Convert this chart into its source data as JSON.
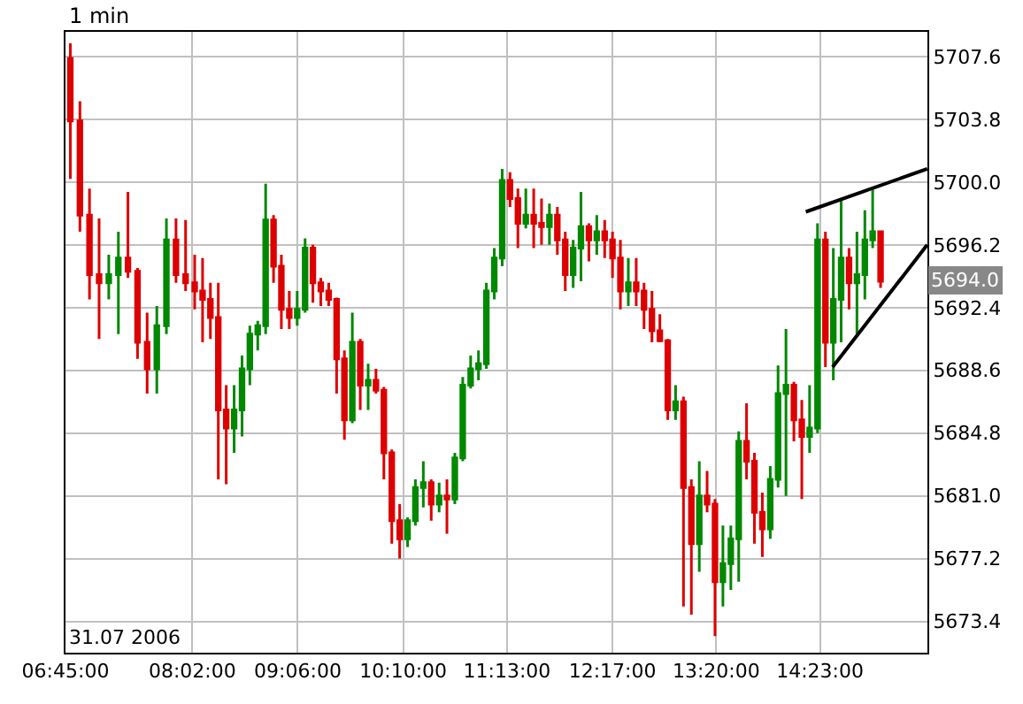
{
  "chart_data": {
    "type": "candlestick",
    "subtitle": "1 min",
    "annotations": [
      "31.07 2006",
      {
        "text": "5694.0",
        "y": 5694.0
      }
    ],
    "x": [
      6.799,
      6.896,
      6.993,
      7.09,
      7.188,
      7.285,
      7.382,
      7.479,
      7.576,
      7.674,
      7.771,
      7.868,
      7.965,
      8.057,
      8.137,
      8.216,
      8.296,
      8.376,
      8.456,
      8.536,
      8.615,
      8.695,
      8.775,
      8.855,
      8.934,
      9.014,
      9.094,
      9.174,
      9.253,
      9.333,
      9.413,
      9.493,
      9.572,
      9.652,
      9.732,
      9.812,
      9.891,
      9.971,
      10.051,
      10.131,
      10.211,
      10.29,
      10.37,
      10.45,
      10.53,
      10.609,
      10.689,
      10.769,
      10.849,
      10.928,
      11.008,
      11.088,
      11.168,
      11.247,
      11.327,
      11.407,
      11.487,
      11.566,
      11.646,
      11.726,
      11.806,
      11.886,
      11.965,
      12.045,
      12.125,
      12.205,
      12.284,
      12.364,
      12.444,
      12.524,
      12.603,
      12.683,
      12.763,
      12.843,
      12.922,
      13.002,
      13.082,
      13.162,
      13.241,
      13.321,
      13.401,
      13.481,
      13.561,
      13.64,
      13.72,
      13.8,
      13.88,
      13.959,
      14.039,
      14.119,
      14.199,
      14.278,
      14.358,
      14.438,
      14.518,
      14.597,
      14.677,
      14.757,
      14.837,
      14.916,
      14.996
    ],
    "ohlc": [
      [
        5707.5,
        5708.4,
        5700.2,
        5703.7
      ],
      [
        5703.7,
        5704.9,
        5697.0,
        5698.0
      ],
      [
        5698.0,
        5699.6,
        5692.9,
        5694.4
      ],
      [
        5694.4,
        5697.8,
        5690.5,
        5693.9
      ],
      [
        5693.9,
        5695.6,
        5692.9,
        5694.4
      ],
      [
        5694.4,
        5697.0,
        5690.8,
        5695.4
      ],
      [
        5695.4,
        5699.4,
        5694.2,
        5694.6
      ],
      [
        5694.6,
        5694.8,
        5689.3,
        5690.3
      ],
      [
        5690.3,
        5692.1,
        5687.2,
        5688.7
      ],
      [
        5688.7,
        5692.5,
        5687.2,
        5691.3
      ],
      [
        5691.3,
        5697.8,
        5690.8,
        5696.5
      ],
      [
        5696.5,
        5697.8,
        5693.9,
        5694.4
      ],
      [
        5694.4,
        5697.7,
        5693.4,
        5693.9
      ],
      [
        5693.9,
        5695.6,
        5692.3,
        5693.4
      ],
      [
        5693.4,
        5695.4,
        5690.3,
        5692.9
      ],
      [
        5692.9,
        5693.9,
        5690.5,
        5691.8
      ],
      [
        5691.8,
        5693.9,
        5682.0,
        5686.2
      ],
      [
        5686.2,
        5687.7,
        5681.7,
        5685.1
      ],
      [
        5685.1,
        5687.7,
        5683.6,
        5686.2
      ],
      [
        5686.2,
        5689.5,
        5684.6,
        5688.7
      ],
      [
        5688.7,
        5691.3,
        5687.7,
        5690.8
      ],
      [
        5690.8,
        5691.6,
        5689.8,
        5691.3
      ],
      [
        5691.3,
        5699.9,
        5690.8,
        5697.7
      ],
      [
        5697.7,
        5698.0,
        5693.9,
        5694.9
      ],
      [
        5694.9,
        5695.6,
        5691.1,
        5692.3
      ],
      [
        5692.3,
        5693.4,
        5691.1,
        5691.8
      ],
      [
        5691.8,
        5693.4,
        5691.3,
        5692.3
      ],
      [
        5692.3,
        5696.6,
        5692.1,
        5696.0
      ],
      [
        5696.0,
        5696.2,
        5692.7,
        5693.9
      ],
      [
        5693.9,
        5694.2,
        5692.5,
        5693.4
      ],
      [
        5693.4,
        5693.9,
        5692.5,
        5692.9
      ],
      [
        5692.9,
        5693.0,
        5687.2,
        5689.3
      ],
      [
        5689.3,
        5689.8,
        5684.4,
        5685.6
      ],
      [
        5685.6,
        5692.1,
        5685.4,
        5690.3
      ],
      [
        5690.3,
        5690.5,
        5686.2,
        5687.7
      ],
      [
        5687.7,
        5689.0,
        5686.2,
        5688.0
      ],
      [
        5688.0,
        5688.7,
        5687.2,
        5687.4
      ],
      [
        5687.4,
        5687.6,
        5682.0,
        5683.6
      ],
      [
        5683.6,
        5683.8,
        5678.1,
        5679.5
      ],
      [
        5679.5,
        5680.5,
        5677.2,
        5678.4
      ],
      [
        5678.4,
        5679.7,
        5677.9,
        5679.5
      ],
      [
        5679.5,
        5682.0,
        5679.2,
        5681.5
      ],
      [
        5681.5,
        5683.1,
        5680.3,
        5681.8
      ],
      [
        5681.8,
        5682.0,
        5679.5,
        5680.5
      ],
      [
        5680.5,
        5681.8,
        5680.0,
        5681.0
      ],
      [
        5681.0,
        5682.0,
        5678.7,
        5680.8
      ],
      [
        5680.8,
        5683.6,
        5680.5,
        5683.3
      ],
      [
        5683.3,
        5688.2,
        5683.1,
        5687.7
      ],
      [
        5687.7,
        5689.5,
        5687.5,
        5688.7
      ],
      [
        5688.7,
        5689.8,
        5688.0,
        5689.0
      ],
      [
        5689.0,
        5693.9,
        5688.7,
        5693.4
      ],
      [
        5693.4,
        5696.0,
        5692.9,
        5695.4
      ],
      [
        5695.4,
        5700.8,
        5694.9,
        5700.1
      ],
      [
        5700.1,
        5700.6,
        5698.5,
        5699.0
      ],
      [
        5699.0,
        5699.6,
        5696.0,
        5697.5
      ],
      [
        5697.5,
        5699.6,
        5697.2,
        5698.0
      ],
      [
        5698.0,
        5699.6,
        5696.0,
        5697.5
      ],
      [
        5697.5,
        5699.0,
        5696.2,
        5697.3
      ],
      [
        5697.3,
        5698.7,
        5696.2,
        5698.0
      ],
      [
        5698.0,
        5698.5,
        5695.6,
        5696.5
      ],
      [
        5696.5,
        5697.0,
        5693.4,
        5694.4
      ],
      [
        5694.4,
        5696.5,
        5693.6,
        5696.0
      ],
      [
        5696.0,
        5699.4,
        5694.0,
        5697.3
      ],
      [
        5697.3,
        5697.5,
        5695.2,
        5696.5
      ],
      [
        5696.5,
        5698.0,
        5695.6,
        5697.0
      ],
      [
        5697.0,
        5697.7,
        5695.4,
        5696.5
      ],
      [
        5696.5,
        5697.0,
        5694.2,
        5695.4
      ],
      [
        5695.4,
        5696.5,
        5692.3,
        5693.4
      ],
      [
        5693.4,
        5695.4,
        5692.5,
        5693.9
      ],
      [
        5693.9,
        5695.4,
        5692.5,
        5693.4
      ],
      [
        5693.4,
        5693.9,
        5691.1,
        5692.3
      ],
      [
        5692.3,
        5693.4,
        5690.3,
        5691.0
      ],
      [
        5691.0,
        5692.0,
        5690.3,
        5690.4
      ],
      [
        5690.4,
        5690.5,
        5685.6,
        5686.2
      ],
      [
        5686.2,
        5687.7,
        5685.6,
        5686.7
      ],
      [
        5686.7,
        5687.0,
        5674.3,
        5681.5
      ],
      [
        5681.5,
        5682.0,
        5673.8,
        5678.1
      ],
      [
        5678.1,
        5683.1,
        5676.4,
        5681.0
      ],
      [
        5681.0,
        5682.5,
        5680.0,
        5680.5
      ],
      [
        5680.5,
        5680.8,
        5672.5,
        5675.8
      ],
      [
        5675.8,
        5679.2,
        5674.3,
        5676.9
      ],
      [
        5676.9,
        5679.2,
        5675.3,
        5678.4
      ],
      [
        5678.4,
        5684.9,
        5675.8,
        5684.3
      ],
      [
        5684.3,
        5686.6,
        5682.0,
        5683.1
      ],
      [
        5683.1,
        5683.6,
        5678.1,
        5680.0
      ],
      [
        5680.0,
        5681.2,
        5677.3,
        5679.0
      ],
      [
        5679.0,
        5682.8,
        5678.4,
        5682.0
      ],
      [
        5682.0,
        5688.9,
        5681.5,
        5687.2
      ],
      [
        5687.2,
        5691.1,
        5681.0,
        5687.7
      ],
      [
        5687.7,
        5687.9,
        5684.3,
        5685.6
      ],
      [
        5685.6,
        5686.8,
        5680.8,
        5684.6
      ],
      [
        5684.6,
        5687.7,
        5683.6,
        5685.1
      ],
      [
        5685.1,
        5697.5,
        5684.8,
        5696.5
      ],
      [
        5696.5,
        5697.0,
        5688.8,
        5690.3
      ],
      [
        5690.3,
        5696.0,
        5688.0,
        5692.9
      ],
      [
        5692.9,
        5699.0,
        5690.3,
        5695.4
      ],
      [
        5695.4,
        5696.0,
        5692.3,
        5693.9
      ],
      [
        5693.9,
        5697.0,
        5690.8,
        5694.4
      ],
      [
        5694.4,
        5698.3,
        5692.9,
        5696.5
      ],
      [
        5696.5,
        5699.6,
        5696.0,
        5697.0
      ],
      [
        5697.0,
        5697.0,
        5693.6,
        5694.0
      ]
    ],
    "colors": [
      "#dd0000",
      "#dd0000",
      "#dd0000",
      "#dd0000",
      "#008800",
      "#008800",
      "#dd0000",
      "#dd0000",
      "#dd0000",
      "#008800",
      "#008800",
      "#dd0000",
      "#dd0000",
      "#dd0000",
      "#dd0000",
      "#dd0000",
      "#dd0000",
      "#dd0000",
      "#008800",
      "#008800",
      "#008800",
      "#008800",
      "#008800",
      "#dd0000",
      "#dd0000",
      "#dd0000",
      "#008800",
      "#008800",
      "#dd0000",
      "#dd0000",
      "#dd0000",
      "#dd0000",
      "#dd0000",
      "#008800",
      "#dd0000",
      "#008800",
      "#dd0000",
      "#dd0000",
      "#dd0000",
      "#dd0000",
      "#008800",
      "#008800",
      "#008800",
      "#dd0000",
      "#008800",
      "#dd0000",
      "#008800",
      "#008800",
      "#008800",
      "#008800",
      "#008800",
      "#008800",
      "#008800",
      "#dd0000",
      "#dd0000",
      "#008800",
      "#dd0000",
      "#dd0000",
      "#008800",
      "#dd0000",
      "#dd0000",
      "#008800",
      "#008800",
      "#dd0000",
      "#008800",
      "#dd0000",
      "#dd0000",
      "#dd0000",
      "#008800",
      "#dd0000",
      "#dd0000",
      "#dd0000",
      "#dd0000",
      "#dd0000",
      "#008800",
      "#dd0000",
      "#dd0000",
      "#008800",
      "#dd0000",
      "#dd0000",
      "#008800",
      "#008800",
      "#008800",
      "#dd0000",
      "#dd0000",
      "#dd0000",
      "#008800",
      "#008800",
      "#008800",
      "#dd0000",
      "#dd0000",
      "#008800",
      "#008800",
      "#dd0000",
      "#008800",
      "#008800",
      "#dd0000",
      "#008800",
      "#008800",
      "#008800",
      "#dd0000"
    ],
    "series": [
      {
        "type": "line",
        "color": "#000000",
        "x": [
          14.24,
          15.468
        ],
        "values": [
          5698.2,
          5700.8
        ]
      },
      {
        "type": "line",
        "color": "#000000",
        "x": [
          14.511,
          15.468
        ],
        "values": [
          5688.8,
          5696.2
        ]
      }
    ],
    "xlim": [
      6.75,
      15.47
    ],
    "xticks": [
      {
        "value": 6.75,
        "label": "06:45:00"
      },
      {
        "value": 8.0333,
        "label": "08:02:00"
      },
      {
        "value": 9.1,
        "label": "09:06:00"
      },
      {
        "value": 10.1667,
        "label": "10:10:00"
      },
      {
        "value": 11.2167,
        "label": "11:13:00"
      },
      {
        "value": 12.2833,
        "label": "12:17:00"
      },
      {
        "value": 13.3333,
        "label": "13:20:00"
      },
      {
        "value": 14.3833,
        "label": "14:23:00"
      }
    ],
    "ylim": [
      5671.5,
      5709.1
    ],
    "yticks": [
      5673.4,
      5677.2,
      {
        "value": 5681,
        "label": "5681.0"
      },
      5684.8,
      5688.6,
      5692.4,
      5696.2,
      {
        "value": 5700,
        "label": "5700.0"
      },
      5703.8,
      5707.6
    ],
    "grid": true
  }
}
